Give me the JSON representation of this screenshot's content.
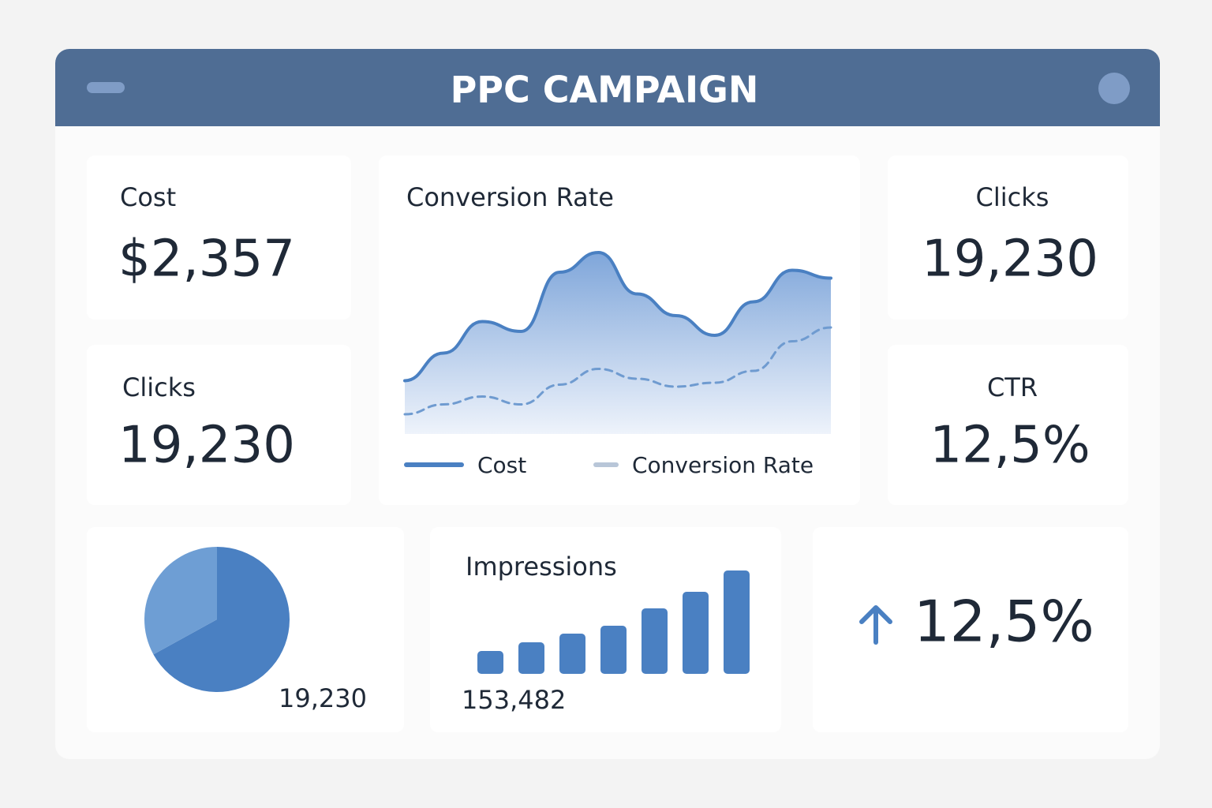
{
  "header": {
    "title": "PPC CAMPAIGN"
  },
  "cards": [
    {
      "label": "Cost",
      "value": "$2,357"
    },
    {
      "label": "Clicks",
      "value": "19,230"
    },
    {
      "label": "Clicks",
      "value": "19,230"
    },
    {
      "label": "CTR",
      "value": "12,5%"
    },
    {
      "value": "12,5%"
    }
  ],
  "chart_data": [
    {
      "type": "area",
      "title": "Conversion Rate",
      "categories": [
        null,
        null,
        null,
        null,
        null,
        null,
        null,
        null,
        null,
        null,
        null,
        null
      ],
      "series": [
        {
          "name": "Cost",
          "color": "#4a80c2",
          "line_style": "solid",
          "filled": true,
          "values": [
            27,
            41,
            57,
            52,
            82,
            92,
            71,
            60,
            50,
            67,
            83,
            79
          ]
        },
        {
          "name": "Conversion Rate",
          "color": "#6f9bd0",
          "legend_color": "#b8c6d8",
          "line_style": "dashed",
          "filled": false,
          "values": [
            10,
            15,
            19,
            15,
            25,
            33,
            28,
            24,
            26,
            32,
            47,
            54
          ]
        }
      ]
    },
    {
      "type": "pie",
      "annotation": "19,230",
      "categories": [
        null,
        null
      ],
      "values": [
        67,
        33
      ],
      "colors": [
        "#4a80c2",
        "#6e9ed4"
      ]
    },
    {
      "type": "bar",
      "title": "Impressions",
      "annotation": "153,482",
      "color": "#4a80c2",
      "categories": [
        null,
        null,
        null,
        null,
        null,
        null,
        null
      ],
      "values": [
        29,
        40,
        51,
        61,
        83,
        104,
        131
      ]
    }
  ]
}
